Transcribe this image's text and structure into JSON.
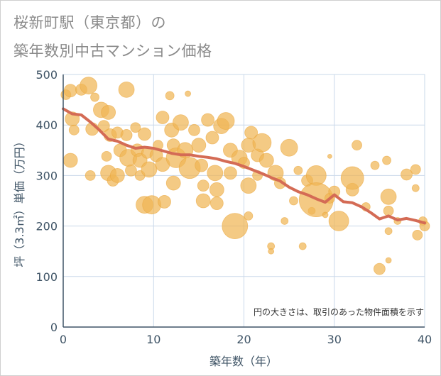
{
  "title_lines": [
    "桜新町駅（東京都）の",
    "築年数別中古マンション価格"
  ],
  "chart_data": {
    "type": "scatter",
    "title": "桜新町駅（東京都）の築年数別中古マンション価格",
    "xlabel": "築年数（年）",
    "ylabel": "坪（3.3㎡）単価（万円）",
    "xlim": [
      0,
      40
    ],
    "ylim": [
      0,
      500
    ],
    "xticks": [
      0,
      10,
      20,
      30,
      40
    ],
    "yticks": [
      0,
      100,
      200,
      300,
      400,
      500
    ],
    "grid": true,
    "annotation": "円の大きさは、取引のあった物件面積を示す",
    "colors": {
      "bubble": "#f0b655",
      "trend": "#d46b55",
      "grid": "#cad8ea",
      "axis": "#3f5466"
    },
    "trend": {
      "x": [
        0,
        1,
        2,
        3,
        4,
        5,
        6,
        7,
        8,
        9,
        10,
        11,
        12,
        13,
        14,
        15,
        16,
        17,
        18,
        19,
        20,
        21,
        22,
        23,
        24,
        25,
        26,
        27,
        28,
        29,
        30,
        31,
        32,
        33,
        34,
        35,
        36,
        37,
        38,
        39,
        40
      ],
      "y": [
        432,
        422,
        420,
        406,
        390,
        372,
        368,
        360,
        354,
        356,
        354,
        349,
        344,
        341,
        341,
        338,
        336,
        333,
        328,
        324,
        318,
        311,
        304,
        296,
        289,
        277,
        268,
        262,
        254,
        247,
        262,
        248,
        246,
        238,
        227,
        214,
        220,
        212,
        215,
        211,
        206
      ]
    },
    "bubbles": [
      {
        "x": 0.3,
        "y": 460,
        "s": 7
      },
      {
        "x": 0.8,
        "y": 468,
        "s": 9
      },
      {
        "x": 1.0,
        "y": 412,
        "s": 10
      },
      {
        "x": 1.2,
        "y": 390,
        "s": 7
      },
      {
        "x": 0.8,
        "y": 330,
        "s": 10
      },
      {
        "x": 2.0,
        "y": 470,
        "s": 8
      },
      {
        "x": 2.8,
        "y": 478,
        "s": 12
      },
      {
        "x": 3.2,
        "y": 392,
        "s": 9
      },
      {
        "x": 3.0,
        "y": 300,
        "s": 7
      },
      {
        "x": 3.5,
        "y": 455,
        "s": 6
      },
      {
        "x": 4.2,
        "y": 430,
        "s": 11
      },
      {
        "x": 4.5,
        "y": 398,
        "s": 8
      },
      {
        "x": 5.0,
        "y": 425,
        "s": 10
      },
      {
        "x": 5.2,
        "y": 380,
        "s": 9
      },
      {
        "x": 4.8,
        "y": 338,
        "s": 7
      },
      {
        "x": 5.0,
        "y": 305,
        "s": 11
      },
      {
        "x": 5.5,
        "y": 290,
        "s": 8
      },
      {
        "x": 6.0,
        "y": 385,
        "s": 8
      },
      {
        "x": 6.3,
        "y": 350,
        "s": 9
      },
      {
        "x": 6.0,
        "y": 300,
        "s": 10
      },
      {
        "x": 7.0,
        "y": 470,
        "s": 11
      },
      {
        "x": 7.0,
        "y": 380,
        "s": 8
      },
      {
        "x": 7.2,
        "y": 335,
        "s": 12
      },
      {
        "x": 7.5,
        "y": 310,
        "s": 8
      },
      {
        "x": 8.0,
        "y": 395,
        "s": 7
      },
      {
        "x": 8.2,
        "y": 350,
        "s": 9
      },
      {
        "x": 8.5,
        "y": 330,
        "s": 10
      },
      {
        "x": 8.5,
        "y": 300,
        "s": 7
      },
      {
        "x": 9.0,
        "y": 242,
        "s": 12
      },
      {
        "x": 9.0,
        "y": 382,
        "s": 9
      },
      {
        "x": 9.3,
        "y": 345,
        "s": 8
      },
      {
        "x": 9.5,
        "y": 312,
        "s": 11
      },
      {
        "x": 9.8,
        "y": 242,
        "s": 13
      },
      {
        "x": 10.3,
        "y": 340,
        "s": 9
      },
      {
        "x": 10.5,
        "y": 360,
        "s": 7
      },
      {
        "x": 11.0,
        "y": 415,
        "s": 9
      },
      {
        "x": 11.0,
        "y": 322,
        "s": 10
      },
      {
        "x": 11.2,
        "y": 248,
        "s": 9
      },
      {
        "x": 11.8,
        "y": 458,
        "s": 6
      },
      {
        "x": 12.0,
        "y": 390,
        "s": 10
      },
      {
        "x": 12.2,
        "y": 360,
        "s": 9
      },
      {
        "x": 12.5,
        "y": 335,
        "s": 14
      },
      {
        "x": 12.2,
        "y": 285,
        "s": 10
      },
      {
        "x": 13.0,
        "y": 405,
        "s": 11
      },
      {
        "x": 13.5,
        "y": 350,
        "s": 11
      },
      {
        "x": 14.0,
        "y": 315,
        "s": 15
      },
      {
        "x": 13.8,
        "y": 462,
        "s": 4
      },
      {
        "x": 14.5,
        "y": 390,
        "s": 8
      },
      {
        "x": 15.0,
        "y": 360,
        "s": 10
      },
      {
        "x": 15.3,
        "y": 320,
        "s": 9
      },
      {
        "x": 15.5,
        "y": 280,
        "s": 8
      },
      {
        "x": 15.5,
        "y": 250,
        "s": 10
      },
      {
        "x": 16.0,
        "y": 410,
        "s": 9
      },
      {
        "x": 16.5,
        "y": 375,
        "s": 9
      },
      {
        "x": 16.8,
        "y": 305,
        "s": 11
      },
      {
        "x": 17.0,
        "y": 272,
        "s": 10
      },
      {
        "x": 17.0,
        "y": 245,
        "s": 9
      },
      {
        "x": 17.5,
        "y": 398,
        "s": 11
      },
      {
        "x": 18.0,
        "y": 408,
        "s": 12
      },
      {
        "x": 18.5,
        "y": 350,
        "s": 10
      },
      {
        "x": 18.5,
        "y": 305,
        "s": 9
      },
      {
        "x": 19.0,
        "y": 200,
        "s": 18
      },
      {
        "x": 19.5,
        "y": 335,
        "s": 11
      },
      {
        "x": 20.0,
        "y": 325,
        "s": 8
      },
      {
        "x": 20.5,
        "y": 360,
        "s": 10
      },
      {
        "x": 20.8,
        "y": 385,
        "s": 9
      },
      {
        "x": 20.5,
        "y": 280,
        "s": 11
      },
      {
        "x": 20.5,
        "y": 220,
        "s": 6
      },
      {
        "x": 21.5,
        "y": 340,
        "s": 9
      },
      {
        "x": 21.5,
        "y": 300,
        "s": 7
      },
      {
        "x": 22.0,
        "y": 365,
        "s": 13
      },
      {
        "x": 22.5,
        "y": 330,
        "s": 10
      },
      {
        "x": 23.0,
        "y": 160,
        "s": 5
      },
      {
        "x": 23.0,
        "y": 150,
        "s": 4
      },
      {
        "x": 23.5,
        "y": 305,
        "s": 11
      },
      {
        "x": 24.0,
        "y": 285,
        "s": 8
      },
      {
        "x": 24.5,
        "y": 210,
        "s": 5
      },
      {
        "x": 25.0,
        "y": 355,
        "s": 12
      },
      {
        "x": 25.5,
        "y": 250,
        "s": 6
      },
      {
        "x": 26.0,
        "y": 310,
        "s": 6
      },
      {
        "x": 26.5,
        "y": 160,
        "s": 5
      },
      {
        "x": 27.0,
        "y": 290,
        "s": 8
      },
      {
        "x": 27.5,
        "y": 230,
        "s": 5
      },
      {
        "x": 28.0,
        "y": 300,
        "s": 14
      },
      {
        "x": 28.0,
        "y": 252,
        "s": 24
      },
      {
        "x": 29.0,
        "y": 222,
        "s": 4
      },
      {
        "x": 29.5,
        "y": 255,
        "s": 7
      },
      {
        "x": 29.5,
        "y": 338,
        "s": 3
      },
      {
        "x": 30.0,
        "y": 268,
        "s": 8
      },
      {
        "x": 30.5,
        "y": 210,
        "s": 14
      },
      {
        "x": 32.0,
        "y": 272,
        "s": 9
      },
      {
        "x": 32.0,
        "y": 295,
        "s": 16
      },
      {
        "x": 32.5,
        "y": 360,
        "s": 7
      },
      {
        "x": 33.5,
        "y": 238,
        "s": 6
      },
      {
        "x": 34.5,
        "y": 320,
        "s": 6
      },
      {
        "x": 35.0,
        "y": 115,
        "s": 8
      },
      {
        "x": 35.8,
        "y": 330,
        "s": 6
      },
      {
        "x": 36.0,
        "y": 258,
        "s": 11
      },
      {
        "x": 36.0,
        "y": 230,
        "s": 7
      },
      {
        "x": 36.0,
        "y": 190,
        "s": 5
      },
      {
        "x": 36.0,
        "y": 132,
        "s": 4
      },
      {
        "x": 37.0,
        "y": 210,
        "s": 5
      },
      {
        "x": 38.0,
        "y": 302,
        "s": 8
      },
      {
        "x": 39.0,
        "y": 312,
        "s": 7
      },
      {
        "x": 39.0,
        "y": 275,
        "s": 5
      },
      {
        "x": 39.2,
        "y": 182,
        "s": 7
      },
      {
        "x": 39.8,
        "y": 210,
        "s": 6
      },
      {
        "x": 40.0,
        "y": 200,
        "s": 7
      }
    ]
  }
}
